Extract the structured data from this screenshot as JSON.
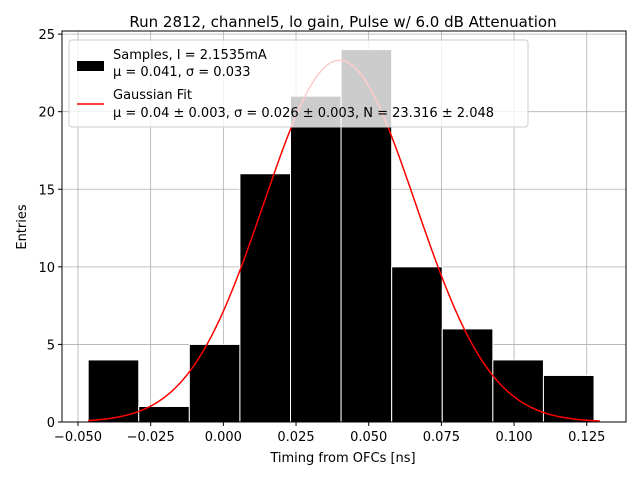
{
  "chart_data": {
    "type": "bar",
    "title": "Run 2812, channel5, lo gain, Pulse w/ 6.0 dB Attenuation",
    "xlabel": "Timing from OFCs [ns]",
    "ylabel": "Entries",
    "xlim": [
      -0.0555,
      0.1385
    ],
    "ylim": [
      0,
      25.2
    ],
    "xticks": [
      -0.05,
      -0.025,
      0.0,
      0.025,
      0.05,
      0.075,
      0.1,
      0.125
    ],
    "xtick_labels": [
      "−0.050",
      "−0.025",
      "0.000",
      "0.025",
      "0.050",
      "0.075",
      "0.100",
      "0.125"
    ],
    "yticks": [
      0,
      5,
      10,
      15,
      20,
      25
    ],
    "ytick_labels": [
      "0",
      "5",
      "10",
      "15",
      "20",
      "25"
    ],
    "grid": true,
    "legend_position": "top-left",
    "histogram": {
      "bin_edges": [
        -0.0465,
        -0.0291,
        -0.0117,
        0.0057,
        0.0231,
        0.0405,
        0.0579,
        0.0753,
        0.0927,
        0.1101,
        0.1275
      ],
      "counts": [
        4,
        1,
        5,
        16,
        21,
        24,
        10,
        6,
        4,
        3
      ],
      "color": "#000000",
      "edge_color": "#ffffff",
      "legend_line1": "Samples, I = 2.1535mA",
      "legend_line2": "μ = 0.041, σ = 0.033"
    },
    "fit": {
      "mu": 0.04,
      "sigma": 0.026,
      "N": 23.316,
      "x_range": [
        -0.0465,
        0.1295
      ],
      "color": "#ff0000",
      "legend_line1": "Gaussian Fit",
      "legend_line2": "μ = 0.04 ± 0.003, σ = 0.026 ± 0.003, N = 23.316 ± 2.048"
    }
  }
}
